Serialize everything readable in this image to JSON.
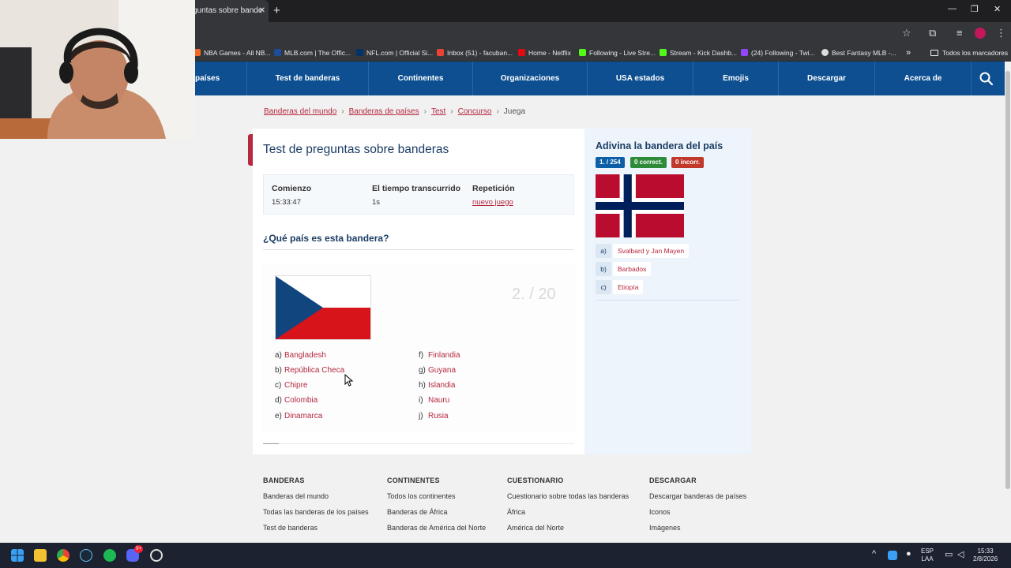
{
  "browser": {
    "tab_title": "guntas sobre bande",
    "tab_close": "✕",
    "new_tab": "+",
    "window_controls": [
      "—",
      "❐",
      "✕"
    ],
    "bookmarks": [
      {
        "label": "NBA Games - All NB...",
        "color": "#f26a21"
      },
      {
        "label": "MLB.com | The Offic...",
        "color": "#1b4d9b"
      },
      {
        "label": "NFL.com | Official Si...",
        "color": "#013369"
      },
      {
        "label": "Inbox (51) - facuban...",
        "color": "#ea4335"
      },
      {
        "label": "Home - Netflix",
        "color": "#e50914"
      },
      {
        "label": "Following - Live Stre...",
        "color": "#53fc18"
      },
      {
        "label": "Stream - Kick Dashb...",
        "color": "#53fc18"
      },
      {
        "label": "(24) Following - Twi...",
        "color": "#9146ff"
      },
      {
        "label": "Best Fantasy MLB -...",
        "color": "#dddddd"
      }
    ],
    "bookmarks_more": "»",
    "all_bookmarks": "Todos los marcadores"
  },
  "nav": {
    "items": [
      "países",
      "Test de banderas",
      "Continentes",
      "Organizaciones",
      "USA estados",
      "Emojis",
      "Descargar",
      "Acerca de"
    ]
  },
  "breadcrumb": {
    "items": [
      "Banderas del mundo",
      "Banderas de países",
      "Test",
      "Concurso"
    ],
    "current": "Juega",
    "separator": "›"
  },
  "main": {
    "title": "Test de preguntas sobre banderas",
    "stats": {
      "start_label": "Comienzo",
      "start_value": "15:33:47",
      "elapsed_label": "El tiempo transcurrido",
      "elapsed_value": "1s",
      "repeat_label": "Repetición",
      "repeat_link": "nuevo juego"
    },
    "question": "¿Qué país es esta bandera?",
    "counter": "2. / 20",
    "options_left": [
      {
        "letter": "a)",
        "text": "Bangladesh"
      },
      {
        "letter": "b)",
        "text": "República Checa"
      },
      {
        "letter": "c)",
        "text": "Chipre"
      },
      {
        "letter": "d)",
        "text": "Colombia"
      },
      {
        "letter": "e)",
        "text": "Dinamarca"
      }
    ],
    "options_right": [
      {
        "letter": "f)",
        "text": "Finlandia"
      },
      {
        "letter": "g)",
        "text": "Guyana"
      },
      {
        "letter": "h)",
        "text": "Islandia"
      },
      {
        "letter": "i)",
        "text": "Nauru"
      },
      {
        "letter": "j)",
        "text": "Rusia"
      }
    ]
  },
  "side": {
    "title": "Adivina la bandera del país",
    "badge_count": "1.  / 254",
    "badge_correct": "0  correct.",
    "badge_incorrect": "0  incorr.",
    "options": [
      {
        "letter": "a)",
        "text": "Svalbard y Jan Mayen"
      },
      {
        "letter": "b)",
        "text": "Barbados"
      },
      {
        "letter": "c)",
        "text": "Etiopía"
      }
    ],
    "colors": {
      "count": "#0d5fa8",
      "correct": "#2e8b3a",
      "incorrect": "#c0392b"
    }
  },
  "footer": {
    "columns": [
      {
        "heading": "BANDERAS",
        "links": [
          "Banderas del mundo",
          "Todas las banderas de los países",
          "Test de banderas"
        ]
      },
      {
        "heading": "CONTINENTES",
        "links": [
          "Todos los continentes",
          "Banderas de África",
          "Banderas de América del Norte"
        ]
      },
      {
        "heading": "CUESTIONARIO",
        "links": [
          "Cuestionario sobre todas las banderas",
          "África",
          "América del Norte"
        ]
      },
      {
        "heading": "DESCARGAR",
        "links": [
          "Descargar banderas de países",
          "Iconos",
          "Imágenes"
        ]
      }
    ]
  },
  "taskbar": {
    "lang_top": "ESP",
    "lang_bottom": "LAA",
    "time": "15:33",
    "date": "2/8/2026",
    "discord_badge": "9+"
  },
  "colors": {
    "nav_blue": "#0d4f91",
    "accent_red": "#b5283e",
    "title_blue": "#1a3d64"
  }
}
